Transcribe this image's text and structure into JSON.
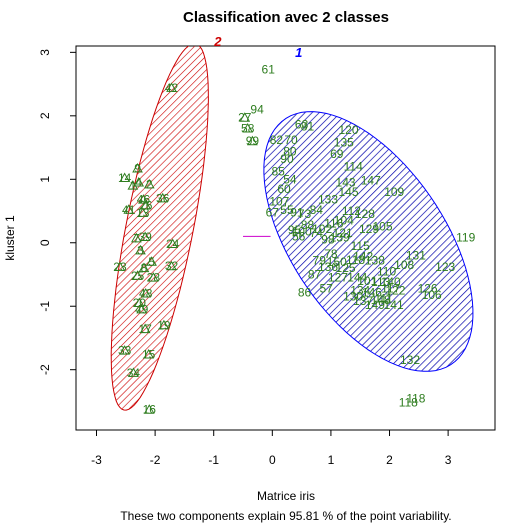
{
  "chart_data": {
    "type": "scatter",
    "title": "Classification avec 2 classes",
    "xlabel": "Matrice iris",
    "ylabel": "kluster 1",
    "subtitle": "These two components explain 95.81 % of the point variability.",
    "xlim": [
      -3.35,
      3.8
    ],
    "ylim": [
      -2.95,
      3.1
    ],
    "xticks": [
      -3,
      -2,
      -1,
      0,
      1,
      2,
      3
    ],
    "yticks": [
      -2,
      -1,
      0,
      1,
      2,
      3
    ],
    "grid": false,
    "colors": {
      "cluster1": "#0000ff",
      "cluster2": "#cc0000",
      "points": "#2e7d1f",
      "connector": "#cc00cc"
    },
    "clusters": [
      {
        "name": "1",
        "center": [
          1.64,
          0.02
        ],
        "semi_major": 2.4,
        "semi_minor": 1.27,
        "angle_deg": -52,
        "hatch": "/"
      },
      {
        "name": "2",
        "center": [
          -1.92,
          0.25
        ],
        "semi_major": 2.95,
        "semi_minor": 0.57,
        "angle_deg": 78,
        "hatch": "/"
      }
    ],
    "connector": [
      [
        -0.5,
        0.1
      ],
      [
        -0.03,
        0.1
      ]
    ],
    "cluster_label_positions": [
      [
        0.45,
        2.93
      ],
      [
        -0.93,
        3.1
      ]
    ],
    "cluster2_points": [
      {
        "label": "42",
        "x": -1.72,
        "y": 2.44
      },
      {
        "label": "14",
        "x": -2.52,
        "y": 1.02
      },
      {
        "label": "9",
        "x": -2.3,
        "y": 1.17
      },
      {
        "label": "4",
        "x": -2.28,
        "y": 0.95
      },
      {
        "label": "2",
        "x": -2.1,
        "y": 0.92
      },
      {
        "label": "1",
        "x": -2.38,
        "y": 0.9
      },
      {
        "label": "46",
        "x": -2.2,
        "y": 0.68
      },
      {
        "label": "36",
        "x": -1.87,
        "y": 0.7
      },
      {
        "label": "41",
        "x": -2.45,
        "y": 0.52
      },
      {
        "label": "26",
        "x": -2.16,
        "y": 0.59
      },
      {
        "label": "13",
        "x": -2.21,
        "y": 0.47
      },
      {
        "label": "7",
        "x": -2.32,
        "y": 0.07
      },
      {
        "label": "39",
        "x": -2.17,
        "y": 0.09
      },
      {
        "label": "24",
        "x": -1.7,
        "y": -0.02
      },
      {
        "label": "3",
        "x": -2.25,
        "y": -0.12
      },
      {
        "label": "5",
        "x": -2.06,
        "y": -0.3
      },
      {
        "label": "8",
        "x": -2.19,
        "y": -0.4
      },
      {
        "label": "32",
        "x": -1.72,
        "y": -0.37
      },
      {
        "label": "23",
        "x": -2.6,
        "y": -0.38
      },
      {
        "label": "25",
        "x": -2.3,
        "y": -0.52
      },
      {
        "label": "28",
        "x": -2.03,
        "y": -0.55
      },
      {
        "label": "48",
        "x": -2.16,
        "y": -0.8
      },
      {
        "label": "20",
        "x": -2.27,
        "y": -0.95
      },
      {
        "label": "49",
        "x": -2.23,
        "y": -1.05
      },
      {
        "label": "17",
        "x": -2.17,
        "y": -1.36
      },
      {
        "label": "19",
        "x": -1.85,
        "y": -1.3
      },
      {
        "label": "33",
        "x": -2.52,
        "y": -1.7
      },
      {
        "label": "15",
        "x": -2.11,
        "y": -1.76
      },
      {
        "label": "34",
        "x": -2.37,
        "y": -2.05
      },
      {
        "label": "16",
        "x": -2.1,
        "y": -2.63
      },
      {
        "label": "27",
        "x": -0.47,
        "y": 1.97
      },
      {
        "label": "58",
        "x": -0.42,
        "y": 1.8
      },
      {
        "label": "99",
        "x": -0.34,
        "y": 1.6
      }
    ],
    "cluster1_points": [
      {
        "label": "61",
        "x": -0.07,
        "y": 2.73
      },
      {
        "label": "94",
        "x": -0.26,
        "y": 2.1
      },
      {
        "label": "63",
        "x": 0.5,
        "y": 1.86
      },
      {
        "label": "81",
        "x": 0.6,
        "y": 1.83
      },
      {
        "label": "82",
        "x": 0.07,
        "y": 1.62
      },
      {
        "label": "70",
        "x": 0.32,
        "y": 1.62
      },
      {
        "label": "80",
        "x": 0.3,
        "y": 1.44
      },
      {
        "label": "90",
        "x": 0.25,
        "y": 1.32
      },
      {
        "label": "120",
        "x": 1.3,
        "y": 1.78
      },
      {
        "label": "135",
        "x": 1.22,
        "y": 1.58
      },
      {
        "label": "69",
        "x": 1.1,
        "y": 1.4
      },
      {
        "label": "114",
        "x": 1.38,
        "y": 1.2
      },
      {
        "label": "147",
        "x": 1.68,
        "y": 0.98
      },
      {
        "label": "143",
        "x": 1.25,
        "y": 0.95
      },
      {
        "label": "145",
        "x": 1.3,
        "y": 0.8
      },
      {
        "label": "109",
        "x": 2.08,
        "y": 0.8
      },
      {
        "label": "85",
        "x": 0.1,
        "y": 1.12
      },
      {
        "label": "54",
        "x": 0.3,
        "y": 1.0
      },
      {
        "label": "60",
        "x": 0.2,
        "y": 0.85
      },
      {
        "label": "107",
        "x": 0.12,
        "y": 0.65
      },
      {
        "label": "55",
        "x": 0.25,
        "y": 0.52
      },
      {
        "label": "67",
        "x": 0.0,
        "y": 0.48
      },
      {
        "label": "91",
        "x": 0.42,
        "y": 0.48
      },
      {
        "label": "73",
        "x": 0.55,
        "y": 0.45
      },
      {
        "label": "84",
        "x": 0.75,
        "y": 0.52
      },
      {
        "label": "133",
        "x": 0.95,
        "y": 0.68
      },
      {
        "label": "112",
        "x": 1.35,
        "y": 0.5
      },
      {
        "label": "104",
        "x": 1.22,
        "y": 0.35
      },
      {
        "label": "128",
        "x": 1.58,
        "y": 0.45
      },
      {
        "label": "88",
        "x": 0.6,
        "y": 0.28
      },
      {
        "label": "100",
        "x": 0.5,
        "y": 0.18
      },
      {
        "label": "95",
        "x": 0.38,
        "y": 0.2
      },
      {
        "label": "74",
        "x": 0.75,
        "y": 0.15
      },
      {
        "label": "102",
        "x": 0.85,
        "y": 0.22
      },
      {
        "label": "116",
        "x": 1.05,
        "y": 0.3
      },
      {
        "label": "121",
        "x": 1.2,
        "y": 0.15
      },
      {
        "label": "129",
        "x": 1.65,
        "y": 0.22
      },
      {
        "label": "105",
        "x": 1.88,
        "y": 0.26
      },
      {
        "label": "56",
        "x": 0.45,
        "y": 0.1
      },
      {
        "label": "98",
        "x": 0.95,
        "y": 0.05
      },
      {
        "label": "139",
        "x": 1.15,
        "y": 0.08
      },
      {
        "label": "119",
        "x": 3.3,
        "y": 0.08
      },
      {
        "label": "115",
        "x": 1.5,
        "y": -0.05
      },
      {
        "label": "79",
        "x": 0.8,
        "y": -0.28
      },
      {
        "label": "136",
        "x": 0.95,
        "y": -0.38
      },
      {
        "label": "150",
        "x": 1.1,
        "y": -0.3
      },
      {
        "label": "118",
        "x": 1.42,
        "y": -0.27
      },
      {
        "label": "142",
        "x": 1.55,
        "y": -0.22
      },
      {
        "label": "138",
        "x": 1.75,
        "y": -0.28
      },
      {
        "label": "131",
        "x": 2.45,
        "y": -0.2
      },
      {
        "label": "108",
        "x": 2.25,
        "y": -0.35
      },
      {
        "label": "123",
        "x": 2.95,
        "y": -0.38
      },
      {
        "label": "110",
        "x": 1.95,
        "y": -0.45
      },
      {
        "label": "125",
        "x": 1.25,
        "y": -0.4
      },
      {
        "label": "144",
        "x": 1.45,
        "y": -0.55
      },
      {
        "label": "101",
        "x": 1.62,
        "y": -0.6
      },
      {
        "label": "113",
        "x": 1.85,
        "y": -0.62
      },
      {
        "label": "140",
        "x": 2.02,
        "y": -0.62
      },
      {
        "label": "122",
        "x": 2.1,
        "y": -0.75
      },
      {
        "label": "146",
        "x": 1.7,
        "y": -0.78
      },
      {
        "label": "111",
        "x": 1.9,
        "y": -0.88
      },
      {
        "label": "137",
        "x": 1.55,
        "y": -0.92
      },
      {
        "label": "149",
        "x": 1.75,
        "y": -0.98
      },
      {
        "label": "141",
        "x": 2.07,
        "y": -0.98
      },
      {
        "label": "148",
        "x": 1.85,
        "y": -0.9
      },
      {
        "label": "117",
        "x": 2.02,
        "y": -0.72
      },
      {
        "label": "126",
        "x": 2.65,
        "y": -0.72
      },
      {
        "label": "106",
        "x": 2.72,
        "y": -0.82
      },
      {
        "label": "127",
        "x": 1.12,
        "y": -0.55
      },
      {
        "label": "86",
        "x": 0.55,
        "y": -0.78
      },
      {
        "label": "57",
        "x": 0.92,
        "y": -0.72
      },
      {
        "label": "130",
        "x": 1.38,
        "y": -0.85
      },
      {
        "label": "134",
        "x": 1.5,
        "y": -0.75
      },
      {
        "label": "87",
        "x": 0.72,
        "y": -0.5
      },
      {
        "label": "78",
        "x": 1.0,
        "y": -0.18
      },
      {
        "label": "132",
        "x": 2.35,
        "y": -1.85
      },
      {
        "label": "118b",
        "text": "118",
        "x": 2.45,
        "y": -2.45
      },
      {
        "label": "116b",
        "text": "118",
        "x": 2.32,
        "y": -2.52
      }
    ]
  }
}
